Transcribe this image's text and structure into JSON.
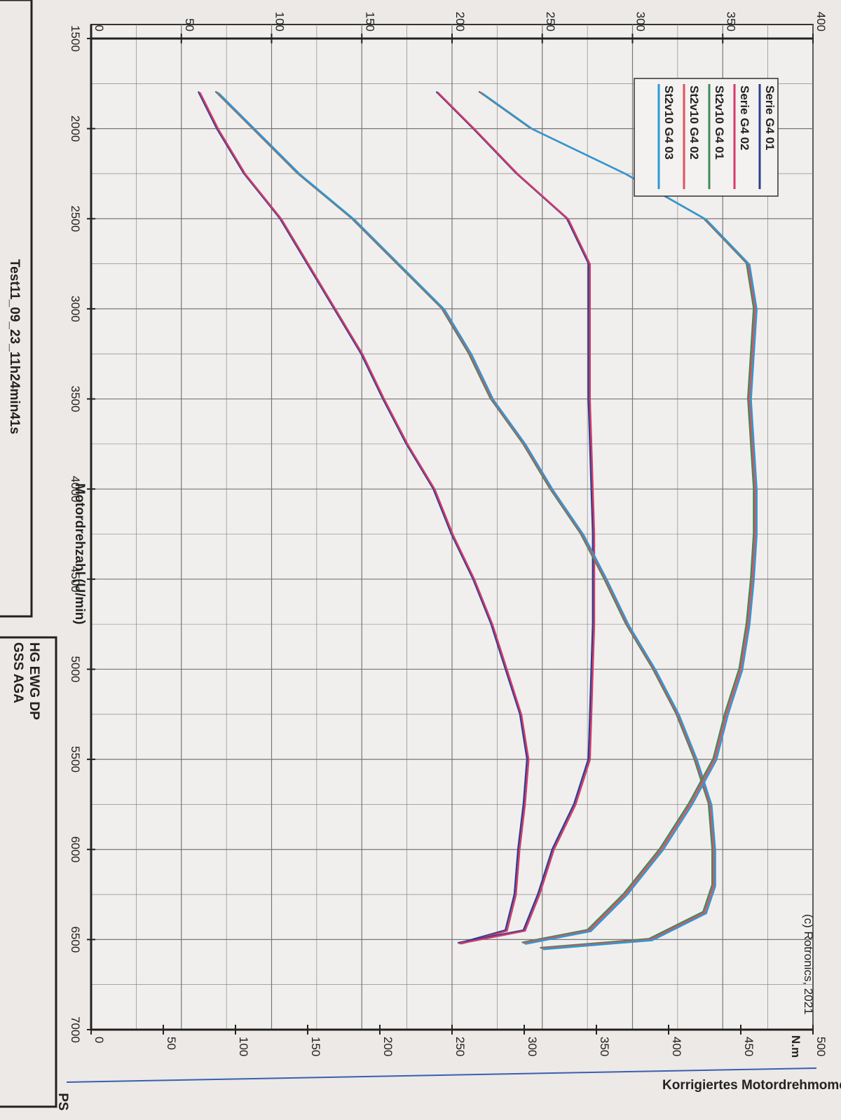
{
  "chart_data": {
    "type": "line",
    "copyright": "(c) Rotronics, 2021",
    "xlabel": "Motordrehzahl (U/min)",
    "ylabel_power": "PS",
    "ylabel_torque": "Korrigiertes Motordrehmoment",
    "torque_unit": "N.m",
    "xlim": [
      1500,
      7000
    ],
    "power_ylim": [
      0,
      400
    ],
    "torque_ylim": [
      0,
      500
    ],
    "x_ticks": [
      "1500",
      "2000",
      "2500",
      "3000",
      "3500",
      "4000",
      "4500",
      "5000",
      "5500",
      "6000",
      "6500",
      "7000"
    ],
    "power_ticks": [
      "0",
      "50",
      "100",
      "150",
      "200",
      "250",
      "300",
      "350",
      "400"
    ],
    "torque_ticks": [
      "0",
      "50",
      "100",
      "150",
      "200",
      "250",
      "300",
      "350",
      "400",
      "450",
      "500"
    ],
    "footer_left": "Test11_09_23_11h24min41s",
    "footer_right": "HG EWG DP",
    "footer_right_line2": "GSS AGA",
    "legend": [
      {
        "name": "Serie G4 01",
        "color": "#2b3f8f"
      },
      {
        "name": "Serie G4 02",
        "color": "#d63a6a"
      },
      {
        "name": "St2v10 G4 01",
        "color": "#3f8a5c"
      },
      {
        "name": "St2v10 G4 02",
        "color": "#e05060"
      },
      {
        "name": "St2v10 G4 03",
        "color": "#2a9ad6"
      }
    ],
    "series": [
      {
        "group": "serie",
        "metric": "power",
        "axis": "power",
        "x": [
          1800,
          2000,
          2250,
          2500,
          2750,
          3000,
          3250,
          3500,
          3750,
          4000,
          4250,
          4500,
          4750,
          5000,
          5250,
          5500,
          5750,
          6000,
          6250,
          6450,
          6520
        ],
        "values": [
          60,
          70,
          85,
          105,
          120,
          135,
          150,
          162,
          175,
          190,
          200,
          212,
          222,
          230,
          238,
          242,
          240,
          237,
          235,
          230,
          205
        ]
      },
      {
        "group": "serie",
        "metric": "torque",
        "axis": "torque",
        "x": [
          1800,
          2000,
          2250,
          2500,
          2750,
          3000,
          3250,
          3500,
          3750,
          4000,
          4250,
          4500,
          4750,
          5000,
          5250,
          5500,
          5750,
          6000,
          6250,
          6450,
          6520
        ],
        "values": [
          240,
          265,
          295,
          330,
          345,
          345,
          345,
          345,
          346,
          347,
          348,
          348,
          348,
          347,
          346,
          345,
          335,
          320,
          310,
          300,
          255
        ]
      },
      {
        "group": "st2v10",
        "metric": "power",
        "axis": "power",
        "x": [
          1800,
          2000,
          2250,
          2500,
          2750,
          3000,
          3250,
          3500,
          3750,
          4000,
          4250,
          4500,
          4750,
          5000,
          5250,
          5500,
          5750,
          6000,
          6200,
          6350,
          6500,
          6550
        ],
        "values": [
          70,
          90,
          115,
          145,
          170,
          195,
          210,
          222,
          240,
          255,
          272,
          285,
          297,
          312,
          325,
          335,
          343,
          345,
          345,
          340,
          310,
          250
        ]
      },
      {
        "group": "st2v10",
        "metric": "torque",
        "axis": "torque",
        "x": [
          1800,
          2000,
          2250,
          2500,
          2750,
          3000,
          3250,
          3500,
          3750,
          4000,
          4250,
          4500,
          4750,
          5000,
          5250,
          5500,
          5750,
          6000,
          6250,
          6450,
          6520
        ],
        "values": [
          270,
          305,
          370,
          425,
          455,
          460,
          458,
          456,
          458,
          460,
          460,
          458,
          455,
          450,
          440,
          432,
          415,
          395,
          370,
          345,
          300
        ]
      }
    ]
  }
}
